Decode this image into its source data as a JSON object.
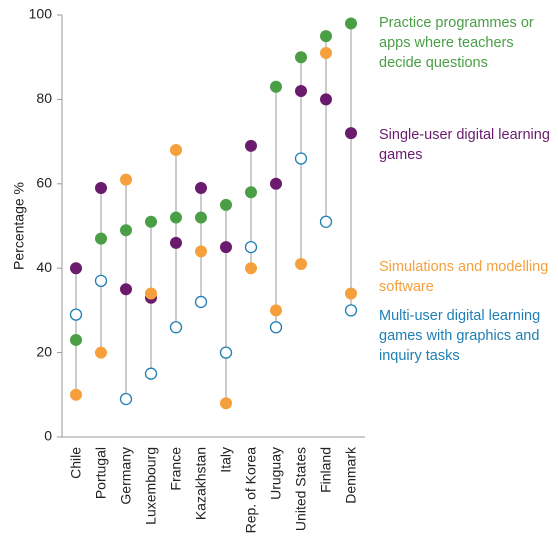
{
  "chart_data": {
    "type": "dot",
    "y_label": "Percentage %",
    "categories": [
      "Chile",
      "Portugal",
      "Germany",
      "Luxembourg",
      "France",
      "Kazakhstan",
      "Italy",
      "Rep. of Korea",
      "Uruguay",
      "United States",
      "Finland",
      "Denmark"
    ],
    "series": [
      {
        "name": "Practice programmes or apps where teachers decide questions",
        "color": "#4a9e46",
        "hollow": false,
        "values": [
          23,
          47,
          49,
          51,
          52,
          52,
          55,
          58,
          83,
          90,
          95,
          98
        ]
      },
      {
        "name": "Single-user digital learning games",
        "color": "#6a1b6e",
        "hollow": false,
        "values": [
          40,
          59,
          35,
          33,
          46,
          59,
          45,
          69,
          60,
          82,
          80,
          72
        ]
      },
      {
        "name": "Simulations and modelling software",
        "color": "#f5a03c",
        "hollow": false,
        "values": [
          10,
          20,
          61,
          34,
          68,
          44,
          8,
          40,
          30,
          41,
          91,
          34
        ]
      },
      {
        "name": "Multi-user digital learning games with graphics and inquiry tasks",
        "color": "#1f7fb4",
        "hollow": true,
        "values": [
          29,
          37,
          9,
          15,
          26,
          32,
          20,
          45,
          26,
          66,
          51,
          30
        ]
      }
    ],
    "ylim": [
      0,
      100
    ],
    "yticks": [
      0,
      20,
      40,
      60,
      80,
      100
    ],
    "grid": false
  }
}
